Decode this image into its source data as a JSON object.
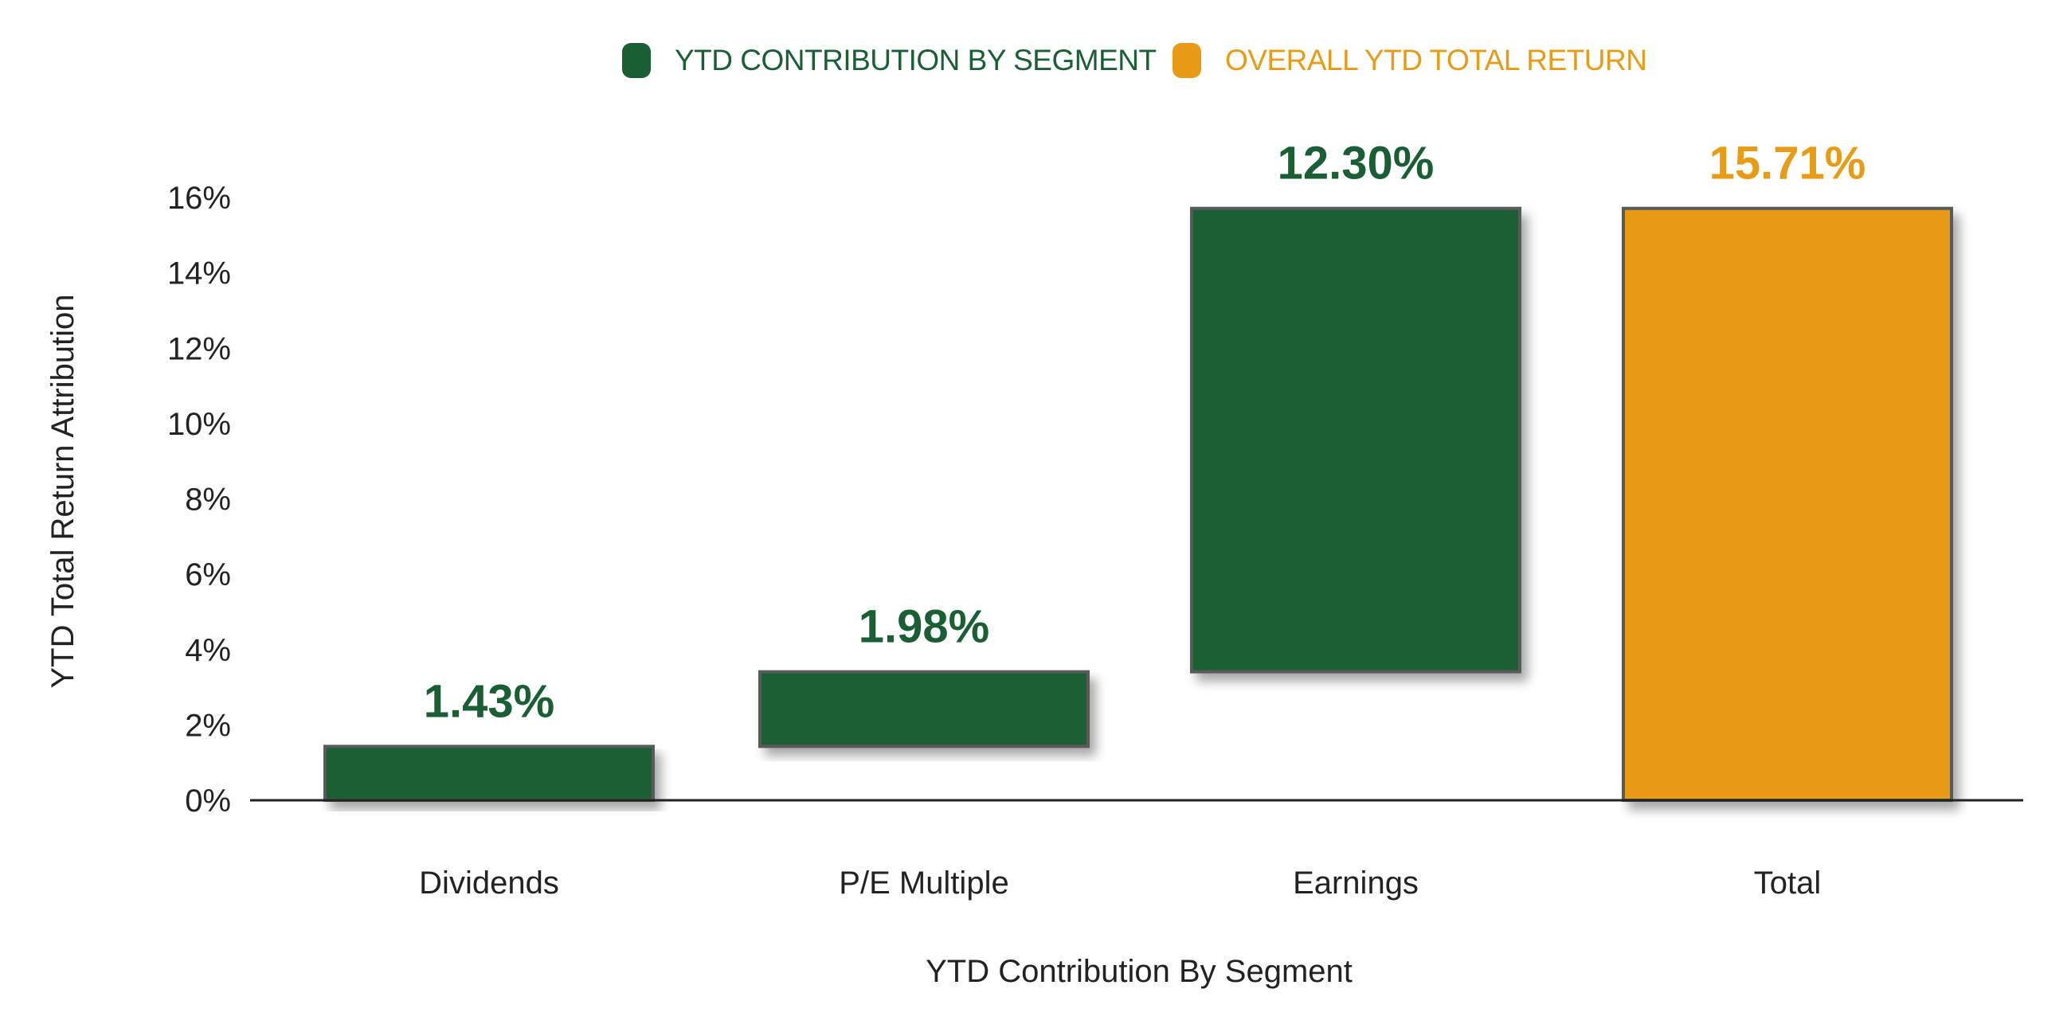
{
  "colors": {
    "segment": "#1a5e34",
    "total": "#e89c16",
    "bar_border": "#5a5a5a",
    "axis": "#222222",
    "text": "#222222"
  },
  "legend": {
    "position": "top-center",
    "items": [
      {
        "label": "YTD CONTRIBUTION BY SEGMENT",
        "color": "#1a5e34",
        "icon": "rounded-square-swatch"
      },
      {
        "label": "OVERALL YTD TOTAL RETURN",
        "color": "#e89c16",
        "icon": "rounded-square-swatch"
      }
    ]
  },
  "chart_data": {
    "type": "bar",
    "subtype": "waterfall",
    "title": "",
    "xlabel": "YTD Contribution By Segment",
    "ylabel": "YTD Total Return Attribution",
    "categories": [
      "Dividends",
      "P/E Multiple",
      "Earnings",
      "Total"
    ],
    "series": [
      {
        "name": "YTD CONTRIBUTION BY SEGMENT",
        "color": "#1a5e34",
        "values": [
          1.43,
          1.98,
          12.3,
          null
        ],
        "base": [
          0,
          1.43,
          3.41,
          null
        ],
        "data_labels": [
          "1.43%",
          "1.98%",
          "12.30%",
          null
        ]
      },
      {
        "name": "OVERALL YTD TOTAL RETURN",
        "color": "#e89c16",
        "values": [
          null,
          null,
          null,
          15.71
        ],
        "base": [
          null,
          null,
          null,
          0
        ],
        "data_labels": [
          null,
          null,
          null,
          "15.71%"
        ]
      }
    ],
    "ylim": [
      0,
      16
    ],
    "yticks": [
      0,
      2,
      4,
      6,
      8,
      10,
      12,
      14,
      16
    ],
    "ytick_labels": [
      "0%",
      "2%",
      "4%",
      "6%",
      "8%",
      "10%",
      "12%",
      "14%",
      "16%"
    ],
    "grid": false,
    "legend_position": "top-center"
  }
}
